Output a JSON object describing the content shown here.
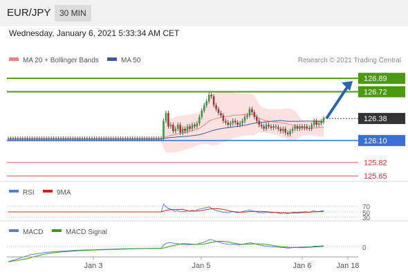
{
  "header": {
    "symbol": "EUR/JPY",
    "timeframe": "30 MIN",
    "datetime": "Wednesday, January 6, 2021 5:33:34 AM CET"
  },
  "legend": {
    "ma20_label": "MA 20 + Bollinger Bands",
    "ma50_label": "MA 50",
    "copyright": "Research © 2021 Trading Central",
    "ma20_color": "#f08080",
    "ma50_color": "#3d5a99"
  },
  "rsi_panel": {
    "rsi_label": "RSI",
    "ma_label": "9MA",
    "level_top": "70",
    "level_mid": "50",
    "level_bottom": "30",
    "rsi_color": "#5b7fc7",
    "ma_color": "#cc2222"
  },
  "macd_panel": {
    "macd_label": "MACD",
    "signal_label": "MACD Signal",
    "zero_label": "0",
    "macd_color": "#5b7fc7",
    "signal_color": "#3a9a1e"
  },
  "x_axis": {
    "ticks": [
      "Jan 3",
      "Jan 5",
      "Jan 6",
      "Jan 18"
    ]
  },
  "levels": [
    {
      "value": 126.89,
      "label": "126.89",
      "style": "green-box"
    },
    {
      "value": 126.72,
      "label": "126.72",
      "style": "green-box"
    },
    {
      "value": 126.38,
      "label": "126.38",
      "style": "dark-box"
    },
    {
      "value": 126.1,
      "label": "126.10",
      "style": "blue-box"
    },
    {
      "value": 125.82,
      "label": "125.82",
      "style": "red-text"
    },
    {
      "value": 125.65,
      "label": "125.65",
      "style": "red-text"
    }
  ],
  "colors": {
    "up": "#3a9a3a",
    "down": "#b03030",
    "green_level": "#4a9a10",
    "blue_level": "#3a6fd8",
    "red_level": "#cc3333",
    "arrow": "#2a63a8"
  },
  "chart_data": {
    "type": "candlestick",
    "price_range": [
      125.58,
      127.05
    ],
    "forecast_arrow": {
      "from": 126.38,
      "to": 126.89
    },
    "close": [
      126.12,
      126.12,
      126.12,
      126.12,
      126.12,
      126.12,
      126.12,
      126.12,
      126.12,
      126.12,
      126.12,
      126.12,
      126.12,
      126.12,
      126.12,
      126.12,
      126.12,
      126.12,
      126.12,
      126.12,
      126.12,
      126.12,
      126.12,
      126.12,
      126.12,
      126.12,
      126.12,
      126.12,
      126.12,
      126.12,
      126.12,
      126.12,
      126.12,
      126.12,
      126.12,
      126.12,
      126.12,
      126.12,
      126.12,
      126.12,
      126.12,
      126.12,
      126.12,
      126.12,
      126.12,
      126.12,
      126.12,
      126.12,
      126.12,
      126.12,
      126.12,
      126.12,
      126.12,
      126.12,
      126.12,
      126.12,
      126.12,
      126.12,
      126.12,
      126.12,
      126.12,
      126.12,
      126.12,
      126.12,
      126.12,
      126.35,
      126.45,
      126.28,
      126.3,
      126.22,
      126.25,
      126.3,
      126.2,
      126.25,
      126.22,
      126.28,
      126.25,
      126.3,
      126.28,
      126.32,
      126.4,
      126.48,
      126.55,
      126.6,
      126.68,
      126.66,
      126.55,
      126.5,
      126.45,
      126.42,
      126.35,
      126.33,
      126.3,
      126.32,
      126.35,
      126.33,
      126.3,
      126.32,
      126.35,
      126.4,
      126.42,
      126.5,
      126.46,
      126.4,
      126.35,
      126.3,
      126.28,
      126.25,
      126.3,
      126.28,
      126.26,
      126.28,
      126.27,
      126.25,
      126.22,
      126.25,
      126.2,
      126.18,
      126.22,
      126.25,
      126.28,
      126.25,
      126.28,
      126.26,
      126.28,
      126.26,
      126.25,
      126.3,
      126.35,
      126.3,
      126.32,
      126.34,
      126.38
    ],
    "rsi": [
      50,
      50,
      50,
      50,
      50,
      50,
      50,
      50,
      50,
      50,
      50,
      50,
      50,
      50,
      50,
      50,
      50,
      50,
      50,
      50,
      50,
      50,
      50,
      50,
      50,
      50,
      50,
      50,
      50,
      50,
      50,
      50,
      50,
      50,
      50,
      50,
      50,
      50,
      50,
      50,
      50,
      50,
      50,
      50,
      50,
      50,
      50,
      50,
      50,
      50,
      50,
      50,
      50,
      50,
      50,
      50,
      50,
      50,
      50,
      50,
      50,
      50,
      50,
      50,
      50,
      78,
      70,
      62,
      60,
      55,
      52,
      55,
      50,
      52,
      50,
      55,
      52,
      56,
      53,
      57,
      60,
      62,
      64,
      66,
      68,
      64,
      58,
      55,
      53,
      52,
      48,
      49,
      47,
      50,
      51,
      49,
      47,
      49,
      51,
      53,
      54,
      57,
      54,
      52,
      50,
      47,
      48,
      46,
      49,
      48,
      47,
      48,
      48,
      46,
      44,
      47,
      45,
      44,
      46,
      48,
      50,
      48,
      50,
      49,
      51,
      50,
      49,
      52,
      54,
      51,
      52,
      53,
      55
    ],
    "macd": [
      -0.2,
      -0.19,
      -0.18,
      -0.17,
      -0.16,
      -0.15,
      -0.14,
      -0.13,
      -0.12,
      -0.11,
      -0.105,
      -0.1,
      -0.095,
      -0.09,
      -0.085,
      -0.08,
      -0.077,
      -0.074,
      -0.071,
      -0.068,
      -0.066,
      -0.064,
      -0.062,
      -0.06,
      -0.058,
      -0.056,
      -0.054,
      -0.052,
      -0.05,
      -0.049,
      -0.048,
      -0.047,
      -0.046,
      -0.045,
      -0.044,
      -0.043,
      -0.042,
      -0.041,
      -0.04,
      -0.039,
      -0.038,
      -0.037,
      -0.036,
      -0.035,
      -0.034,
      -0.033,
      -0.032,
      -0.031,
      -0.03,
      -0.03,
      -0.029,
      -0.029,
      -0.028,
      -0.028,
      -0.027,
      -0.027,
      -0.026,
      -0.026,
      -0.025,
      -0.025,
      -0.024,
      -0.024,
      -0.024,
      -0.023,
      -0.023,
      0.02,
      0.04,
      0.05,
      0.05,
      0.045,
      0.04,
      0.038,
      0.03,
      0.028,
      0.024,
      0.026,
      0.024,
      0.028,
      0.026,
      0.03,
      0.04,
      0.05,
      0.06,
      0.07,
      0.09,
      0.09,
      0.08,
      0.07,
      0.06,
      0.05,
      0.04,
      0.035,
      0.03,
      0.028,
      0.03,
      0.028,
      0.024,
      0.024,
      0.028,
      0.035,
      0.04,
      0.05,
      0.045,
      0.04,
      0.03,
      0.02,
      0.015,
      0.008,
      0.006,
      0.002,
      -0.002,
      -0.004,
      -0.006,
      -0.008,
      -0.012,
      -0.012,
      -0.016,
      -0.02,
      -0.018,
      -0.014,
      -0.01,
      -0.012,
      -0.008,
      -0.008,
      -0.006,
      -0.006,
      -0.006,
      -0.002,
      0.004,
      0.004,
      0.006,
      0.008,
      0.012
    ]
  }
}
